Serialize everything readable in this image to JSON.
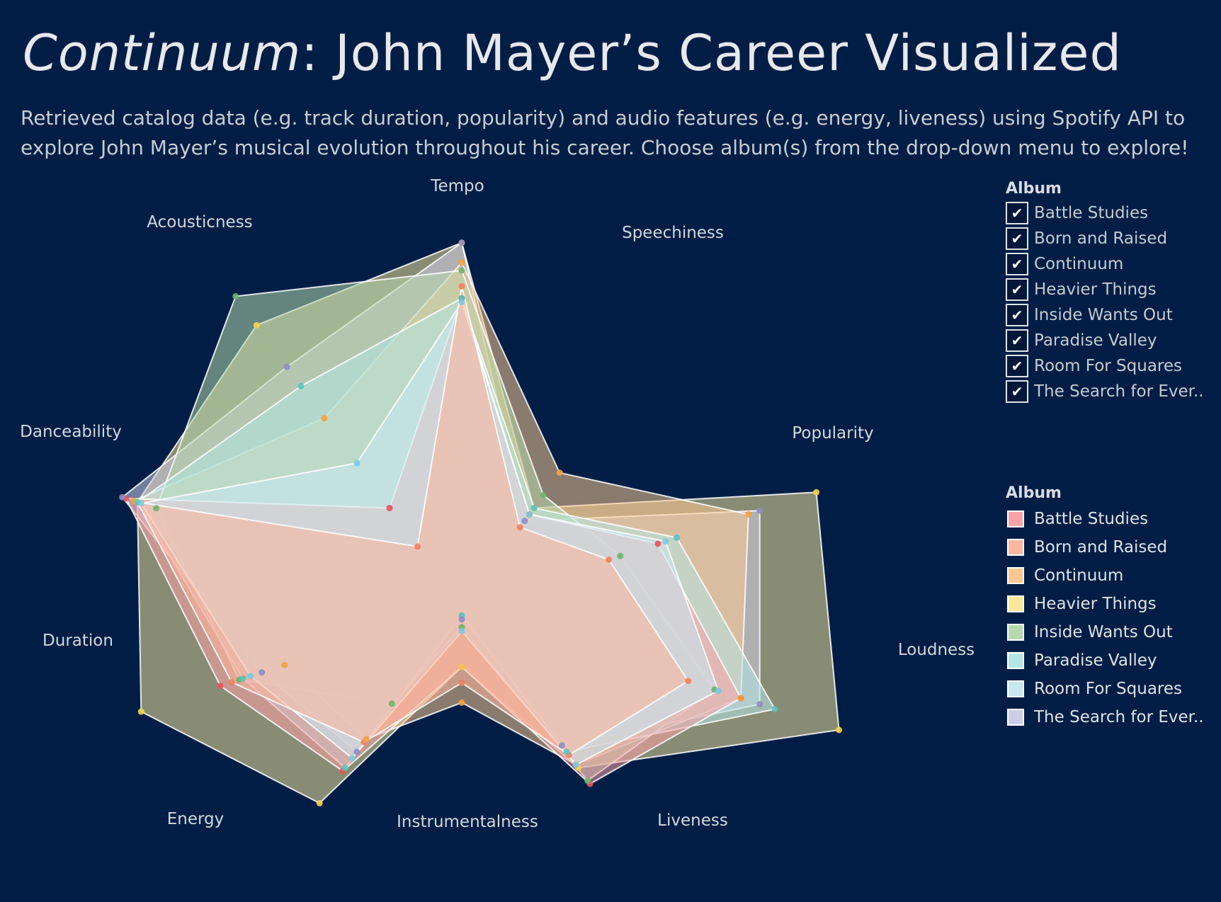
{
  "header": {
    "title_italic": "Continuum",
    "title_rest": ": John Mayer’s Career Visualized",
    "subtitle": "Retrieved catalog data (e.g. track duration, popularity) and audio features (e.g. energy, liveness) using Spotify API to explore John Mayer’s musical evolution throughout his career. Choose album(s) from the drop-down menu to explore!"
  },
  "filter": {
    "title": "Album",
    "items": [
      {
        "label": "Battle Studies",
        "checked": true
      },
      {
        "label": "Born and Raised",
        "checked": true
      },
      {
        "label": "Continuum",
        "checked": true
      },
      {
        "label": "Heavier Things",
        "checked": true
      },
      {
        "label": "Inside Wants Out",
        "checked": true
      },
      {
        "label": "Paradise Valley",
        "checked": true
      },
      {
        "label": "Room For Squares",
        "checked": true
      },
      {
        "label": "The Search for Ever..",
        "checked": true
      }
    ]
  },
  "legend": {
    "title": "Album",
    "items": [
      {
        "label": "Battle Studies",
        "color": "#f7a3a7"
      },
      {
        "label": "Born and Raised",
        "color": "#fbb79d"
      },
      {
        "label": "Continuum",
        "color": "#fcc891"
      },
      {
        "label": "Heavier Things",
        "color": "#fae89a"
      },
      {
        "label": "Inside Wants Out",
        "color": "#b8d9ad"
      },
      {
        "label": "Paradise Valley",
        "color": "#b5e6e3"
      },
      {
        "label": "Room For Squares",
        "color": "#c8e8f1"
      },
      {
        "label": "The Search for Ever..",
        "color": "#cfcde6"
      }
    ]
  },
  "chart_data": {
    "type": "radar",
    "axes": [
      "Tempo",
      "Speechiness",
      "Popularity",
      "Loudness",
      "Liveness",
      "Instrumentalness",
      "Energy",
      "Duration",
      "Danceability",
      "Acousticness"
    ],
    "value_range": [
      0,
      1
    ],
    "series": [
      {
        "name": "Battle Studies",
        "color": "#f7a3a7",
        "stroke": "#e8505b",
        "values": [
          0.78,
          0.29,
          0.52,
          0.74,
          0.55,
          0.15,
          0.51,
          0.64,
          0.89,
          0.31
        ]
      },
      {
        "name": "Born and Raised",
        "color": "#fbb79d",
        "stroke": "#f0805a",
        "values": [
          0.81,
          0.25,
          0.39,
          0.6,
          0.46,
          0.19,
          0.42,
          0.61,
          0.86,
          0.19
        ]
      },
      {
        "name": "Continuum",
        "color": "#fcc891",
        "stroke": "#f4a03c",
        "values": [
          0.87,
          0.42,
          0.76,
          0.74,
          0.49,
          0.24,
          0.41,
          0.47,
          0.87,
          0.59
        ]
      },
      {
        "name": "Heavier Things",
        "color": "#fae89a",
        "stroke": "#f5d14a",
        "values": [
          0.92,
          0.31,
          0.94,
          1.0,
          0.5,
          0.15,
          0.61,
          0.85,
          0.86,
          0.88
        ]
      },
      {
        "name": "Inside Wants Out",
        "color": "#b8d9ad",
        "stroke": "#6fb26a",
        "values": [
          0.85,
          0.35,
          0.42,
          0.67,
          0.54,
          0.05,
          0.3,
          0.59,
          0.81,
          0.97
        ]
      },
      {
        "name": "Paradise Valley",
        "color": "#b5e6e3",
        "stroke": "#59c2ba",
        "values": [
          0.78,
          0.31,
          0.57,
          0.83,
          0.45,
          0.02,
          0.5,
          0.58,
          0.86,
          0.69
        ]
      },
      {
        "name": "Room For Squares",
        "color": "#c8e8f1",
        "stroke": "#7dc8e0",
        "values": [
          0.77,
          0.29,
          0.54,
          0.68,
          0.49,
          0.06,
          0.47,
          0.56,
          0.85,
          0.45
        ]
      },
      {
        "name": "The Search for Ever..",
        "color": "#cfcde6",
        "stroke": "#8f8cc4",
        "values": [
          0.92,
          0.27,
          0.79,
          0.79,
          0.43,
          0.03,
          0.45,
          0.53,
          0.9,
          0.75
        ]
      }
    ]
  }
}
